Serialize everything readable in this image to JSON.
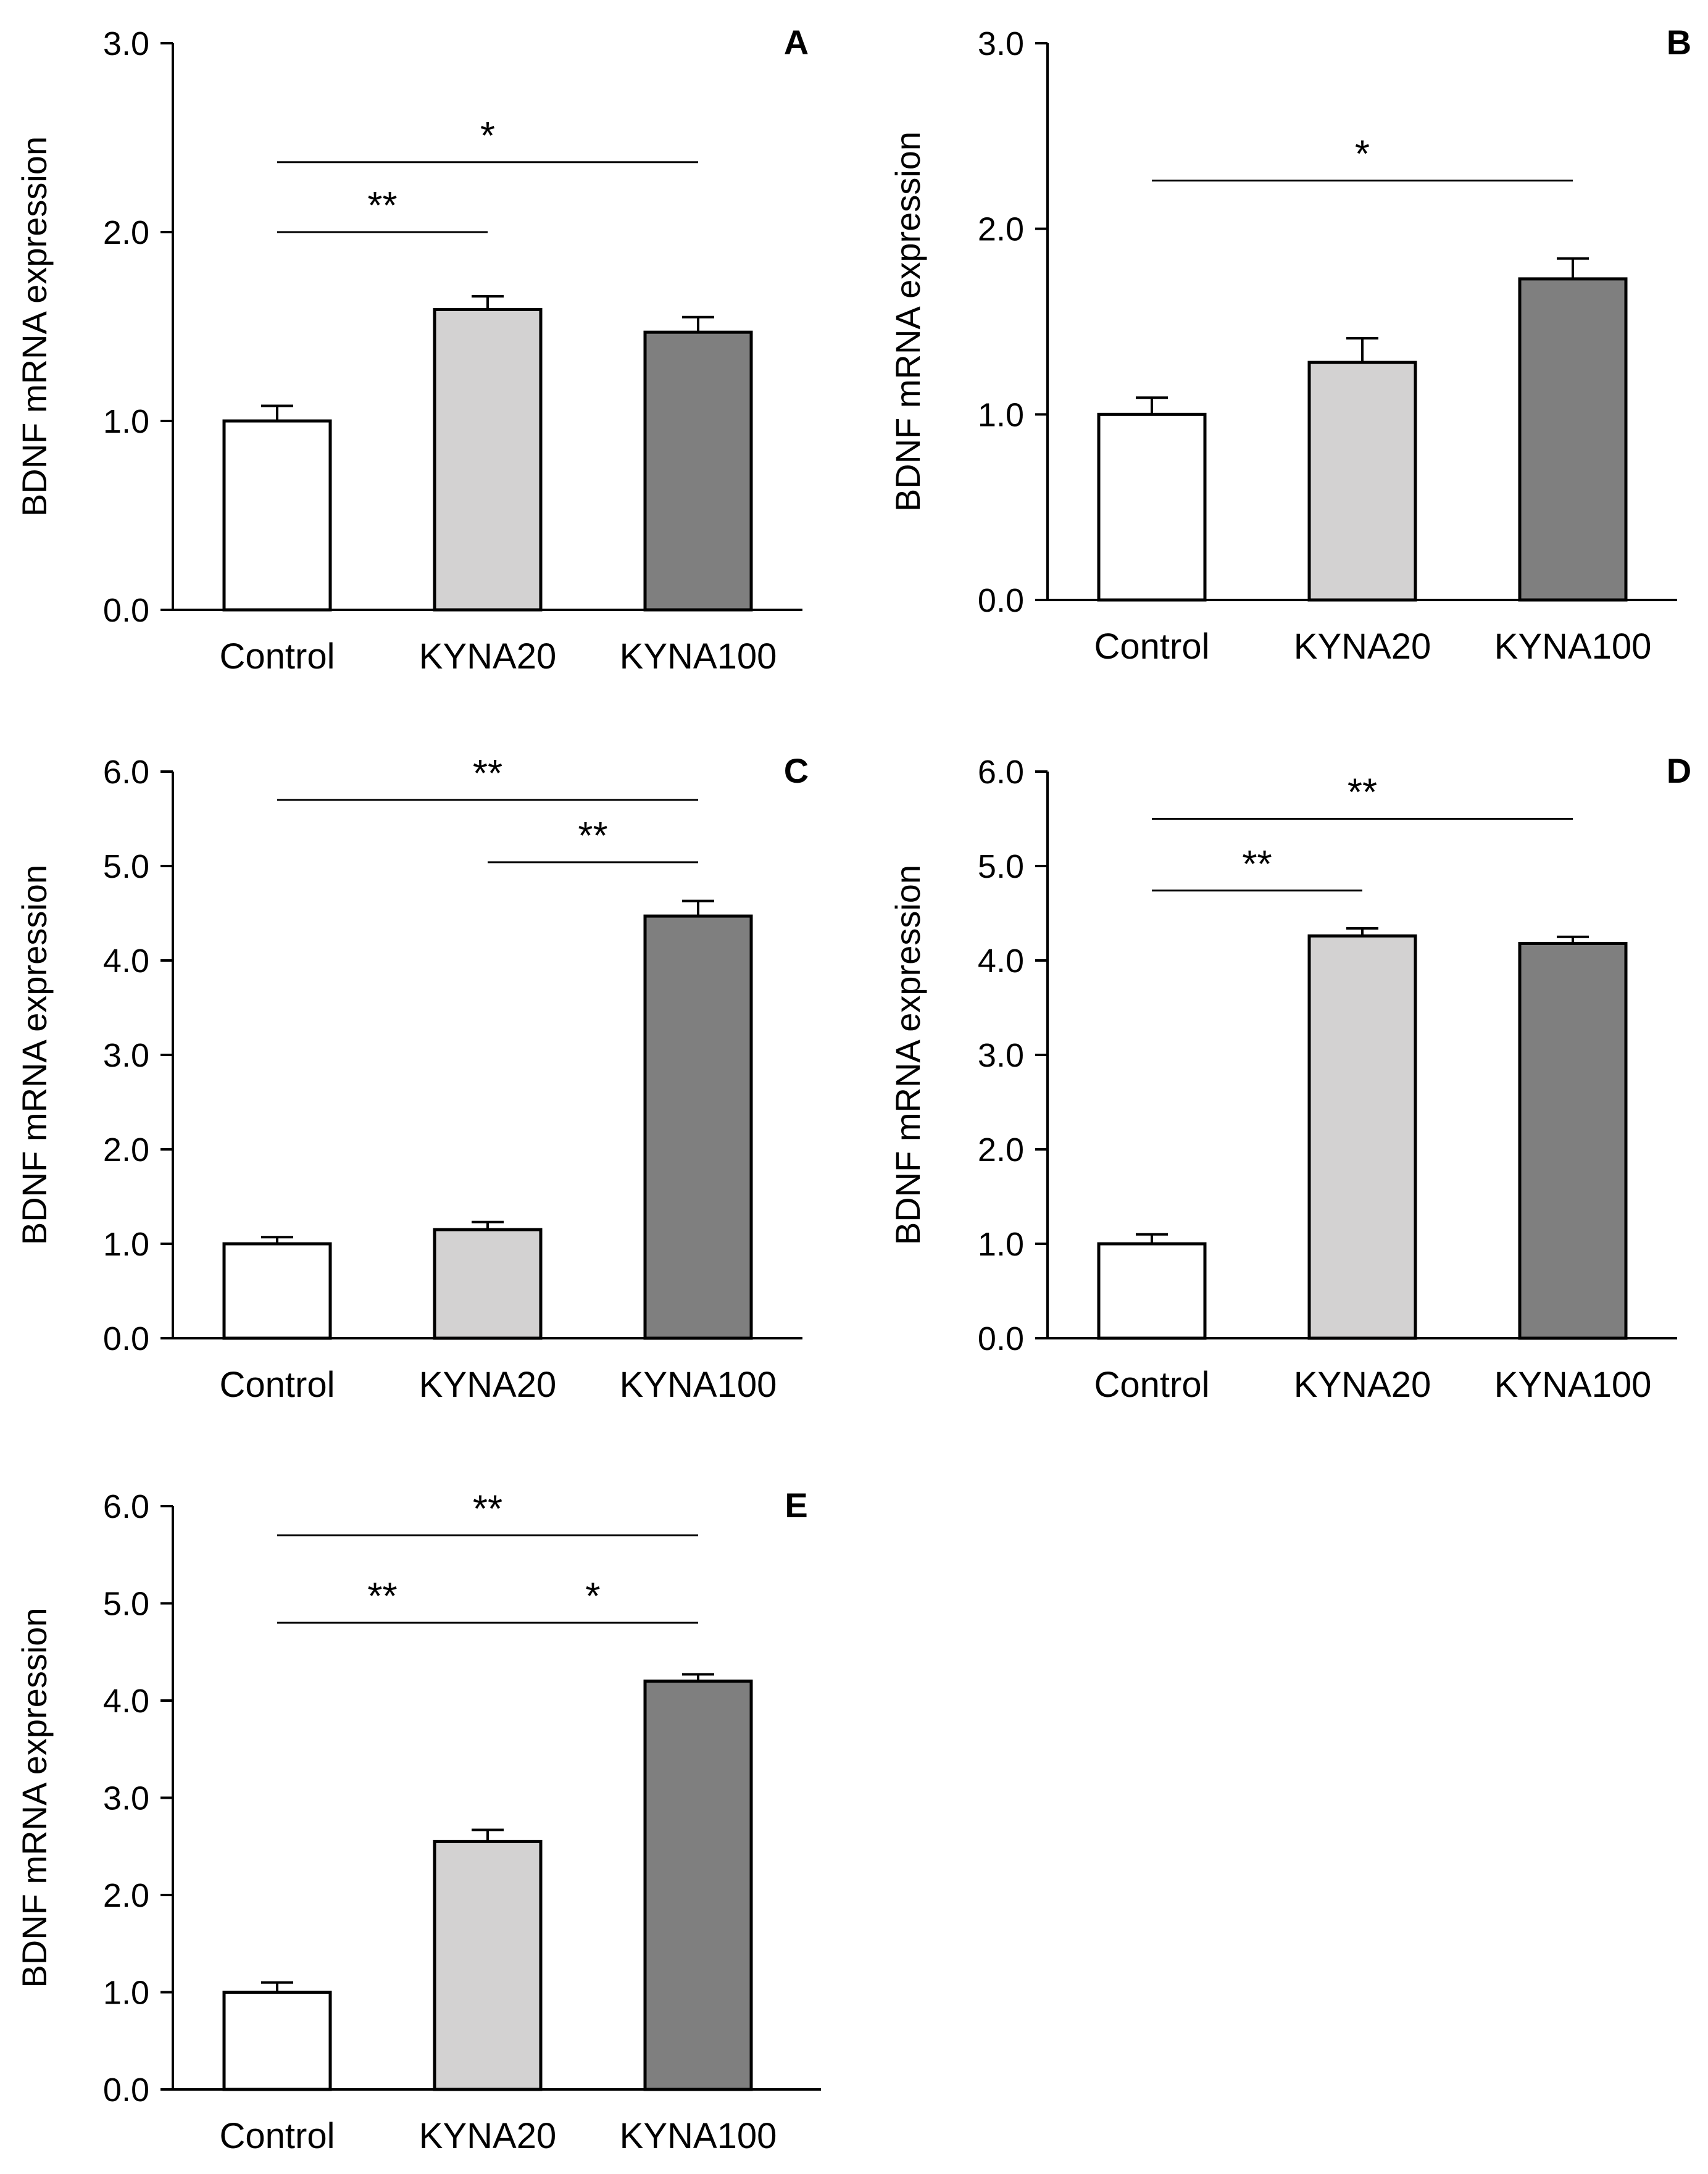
{
  "figure": {
    "title": "BDNF mRNA expression panels A–E"
  },
  "colors": {
    "Control": "#ffffff",
    "KYNA20": "#d3d2d2",
    "KYNA100": "#7f7f7f",
    "stroke": "#000000"
  },
  "chart_data": [
    {
      "panel": "A",
      "type": "bar",
      "title": "",
      "xlabel": "",
      "ylabel": "BDNF mRNA expression",
      "ylim": [
        0,
        3
      ],
      "yticks": [
        "0.0",
        "1.0",
        "2.0",
        "3.0"
      ],
      "ytick_values": [
        0,
        1,
        2,
        3
      ],
      "categories": [
        "Control",
        "KYNA20",
        "KYNA100"
      ],
      "values": [
        1.0,
        1.59,
        1.47
      ],
      "errors": [
        0.08,
        0.07,
        0.08
      ],
      "significance": [
        {
          "from": 0,
          "to": 1,
          "y": 2.0,
          "label": "**"
        },
        {
          "from": 0,
          "to": 2,
          "y": 2.37,
          "label": "*"
        }
      ]
    },
    {
      "panel": "B",
      "type": "bar",
      "title": "",
      "xlabel": "",
      "ylabel": "BDNF mRNA expression",
      "ylim": [
        0,
        3
      ],
      "yticks": [
        "0.0",
        "1.0",
        "2.0",
        "3.0"
      ],
      "ytick_values": [
        0,
        1,
        2,
        3
      ],
      "categories": [
        "Control",
        "KYNA20",
        "KYNA100"
      ],
      "values": [
        1.0,
        1.28,
        1.73
      ],
      "errors": [
        0.09,
        0.13,
        0.11
      ],
      "significance": [
        {
          "from": 0,
          "to": 2,
          "y": 2.26,
          "label": "*"
        }
      ]
    },
    {
      "panel": "C",
      "type": "bar",
      "title": "",
      "xlabel": "",
      "ylabel": "BDNF mRNA expression",
      "ylim": [
        0,
        6
      ],
      "yticks": [
        "0.0",
        "1.0",
        "2.0",
        "3.0",
        "4.0",
        "5.0",
        "6.0"
      ],
      "ytick_values": [
        0,
        1,
        2,
        3,
        4,
        5,
        6
      ],
      "categories": [
        "Control",
        "KYNA20",
        "KYNA100"
      ],
      "values": [
        1.0,
        1.15,
        4.47
      ],
      "errors": [
        0.07,
        0.08,
        0.16
      ],
      "significance": [
        {
          "from": 0,
          "to": 2,
          "y": 5.7,
          "label": "**"
        },
        {
          "from": 1,
          "to": 2,
          "y": 5.04,
          "label": "**"
        }
      ]
    },
    {
      "panel": "D",
      "type": "bar",
      "title": "",
      "xlabel": "",
      "ylabel": "BDNF mRNA expression",
      "ylim": [
        0,
        6
      ],
      "yticks": [
        "0.0",
        "1.0",
        "2.0",
        "3.0",
        "4.0",
        "5.0",
        "6.0"
      ],
      "ytick_values": [
        0,
        1,
        2,
        3,
        4,
        5,
        6
      ],
      "categories": [
        "Control",
        "KYNA20",
        "KYNA100"
      ],
      "values": [
        1.0,
        4.26,
        4.18
      ],
      "errors": [
        0.1,
        0.08,
        0.07
      ],
      "significance": [
        {
          "from": 0,
          "to": 1,
          "y": 4.74,
          "label": "**"
        },
        {
          "from": 0,
          "to": 2,
          "y": 5.5,
          "label": "**"
        }
      ]
    },
    {
      "panel": "E",
      "type": "bar",
      "title": "",
      "xlabel": "",
      "ylabel": "BDNF mRNA expression",
      "ylim": [
        0,
        6
      ],
      "yticks": [
        "0.0",
        "1.0",
        "2.0",
        "3.0",
        "4.0",
        "5.0",
        "6.0"
      ],
      "ytick_values": [
        0,
        1,
        2,
        3,
        4,
        5,
        6
      ],
      "categories": [
        "Control",
        "KYNA20",
        "KYNA100"
      ],
      "values": [
        1.0,
        2.55,
        4.2
      ],
      "errors": [
        0.1,
        0.12,
        0.07
      ],
      "significance": [
        {
          "from": 0,
          "to": 1,
          "y": 4.8,
          "label": "**"
        },
        {
          "from": 1,
          "to": 2,
          "y": 4.8,
          "label": "*"
        },
        {
          "from": 0,
          "to": 2,
          "y": 5.7,
          "label": "**"
        }
      ]
    }
  ]
}
